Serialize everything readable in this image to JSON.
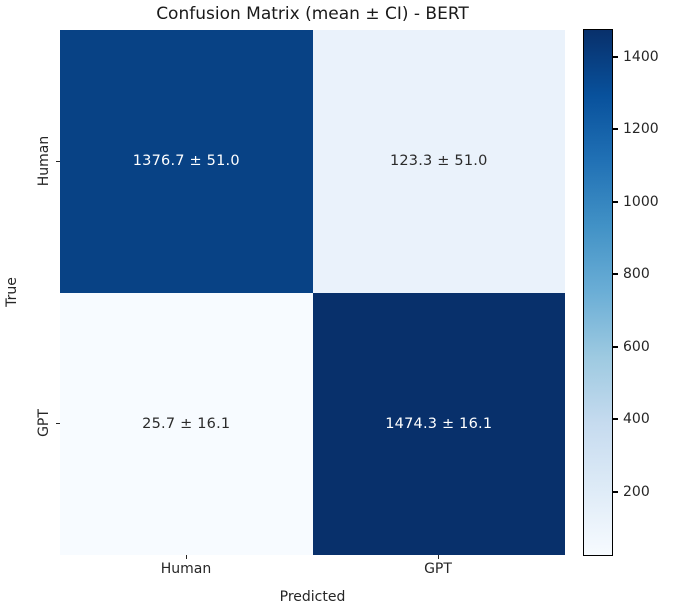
{
  "chart_data": {
    "type": "heatmap",
    "title": "Confusion Matrix (mean ± CI) - BERT",
    "xlabel": "Predicted",
    "ylabel": "True",
    "x_categories": [
      "Human",
      "GPT"
    ],
    "y_categories": [
      "Human",
      "GPT"
    ],
    "values": [
      [
        1376.7,
        123.3
      ],
      [
        25.7,
        1474.3
      ]
    ],
    "ci": [
      [
        51.0,
        51.0
      ],
      [
        16.1,
        16.1
      ]
    ],
    "cell_labels": [
      [
        "1376.7 ± 51.0",
        "123.3 ± 51.0"
      ],
      [
        "25.7 ± 16.1",
        "1474.3 ± 16.1"
      ]
    ],
    "colormap": "Blues",
    "vmin": 25.7,
    "vmax": 1474.3,
    "colorbar_ticks": [
      200,
      400,
      600,
      800,
      1000,
      1200,
      1400
    ],
    "colorbar_gradient": [
      "#f7fbff",
      "#deebf7",
      "#c6dbef",
      "#9ecae1",
      "#6baed6",
      "#4292c6",
      "#2171b5",
      "#08519c",
      "#08306b"
    ],
    "cell_colors": [
      [
        "#084285",
        "#eaf2fb"
      ],
      [
        "#f7fbff",
        "#08306b"
      ]
    ],
    "cell_text_colors": [
      [
        "#ffffff",
        "#2b2b2b"
      ],
      [
        "#2b2b2b",
        "#ffffff"
      ]
    ],
    "legend_position": "right",
    "grid": false
  }
}
